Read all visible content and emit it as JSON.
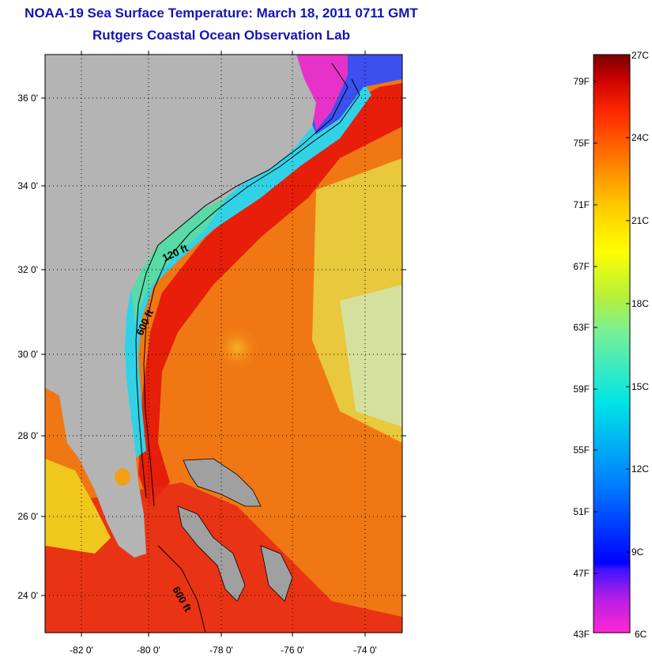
{
  "title": {
    "line1": "NOAA-19 Sea Surface Temperature:  March 18, 2011 0711 GMT",
    "line2": "Rutgers Coastal Ocean Observation Lab"
  },
  "map": {
    "lat_labels": [
      "36 0'",
      "34 0'",
      "32 0'",
      "30 0'",
      "28 0'",
      "26 0'",
      "24 0'"
    ],
    "lon_labels": [
      "-82 0'",
      "-80 0'",
      "-78 0'",
      "-76 0'",
      "-74 0'"
    ],
    "contour_labels": [
      "120 ft",
      "600 ft",
      "600 ft"
    ],
    "colors": {
      "land": "#b4b4b4",
      "gulf_stream": "#e61e0a",
      "warm_water": "#f07814",
      "cool_shelf": "#32d2e6",
      "cold_north": "#e632c8",
      "yellow_band": "#e6e632"
    }
  },
  "colorbar": {
    "f_labels": [
      "79F",
      "75F",
      "71F",
      "67F",
      "63F",
      "59F",
      "55F",
      "51F",
      "47F",
      "43F"
    ],
    "c_labels": [
      "27C",
      "24C",
      "21C",
      "18C",
      "15C",
      "12C",
      "9C",
      "6C"
    ]
  }
}
